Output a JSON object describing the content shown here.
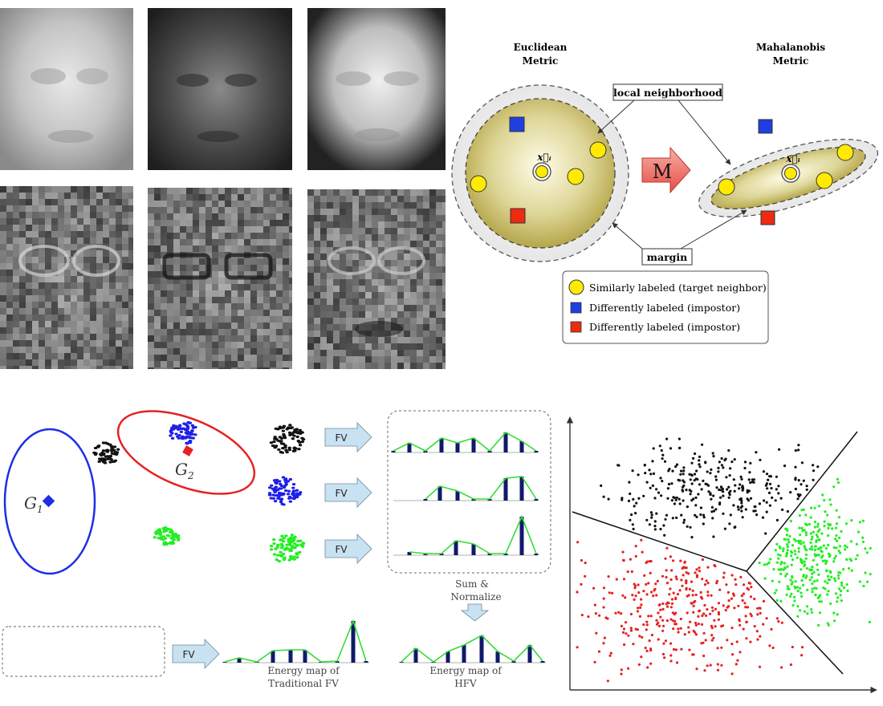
{
  "metric": {
    "euclidean_line1": "Euclidean",
    "euclidean_line2": "Metric",
    "mahalanobis_line1": "Mahalanobis",
    "mahalanobis_line2": "Metric",
    "local_neighborhood": "local neighborhood",
    "margin": "margin",
    "m_symbol": "M",
    "xi_label": "x⃗ᵢ",
    "legend": [
      {
        "text": "Similarly labeled (target neighbor)",
        "color": "#ffea00"
      },
      {
        "text": "Differently labeled (impostor)",
        "color": "#1f3fe0"
      },
      {
        "text": "Differently labeled (impostor)",
        "color": "#ee2a10"
      }
    ]
  },
  "hfv": {
    "g1": "G",
    "g1_sub": "1",
    "g2": "G",
    "g2_sub": "2",
    "fv": "FV",
    "sum_line1": "Sum &",
    "sum_line2": "Normalize",
    "energy_trad_line1": "Energy map of",
    "energy_trad_line2": "Traditional FV",
    "energy_hfv_line1": "Energy map of",
    "energy_hfv_line2": "HFV"
  },
  "colors": {
    "cluster_black": "#111111",
    "cluster_blue": "#1f1fe8",
    "cluster_green": "#22ee22",
    "cluster_red": "#e52222",
    "hist_bar": "#101a6a",
    "hist_line": "#33dd33",
    "arrow_fill": "#c9e2f2"
  }
}
